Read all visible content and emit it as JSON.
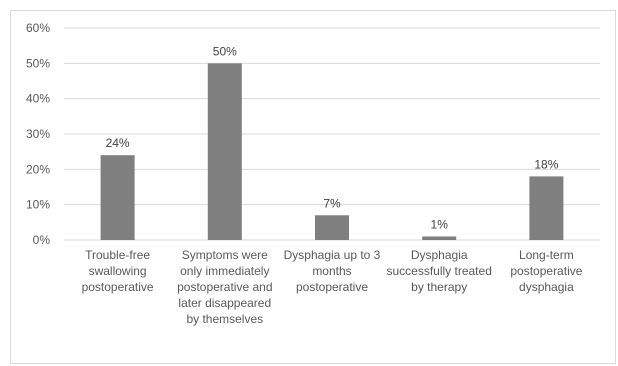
{
  "chart_data": {
    "type": "bar",
    "categories": [
      "Trouble-free swallowing postoperative",
      "Symptoms were only immediately postoperative and later disappeared by themselves",
      "Dysphagia up to 3 months postoperative",
      "Dysphagia successfully treated by therapy",
      "Long-term postoperative dysphagia"
    ],
    "values": [
      24,
      50,
      7,
      1,
      18
    ],
    "data_labels": [
      "24%",
      "50%",
      "7%",
      "1%",
      "18%"
    ],
    "y_ticks": [
      "0%",
      "10%",
      "20%",
      "30%",
      "40%",
      "50%",
      "60%"
    ],
    "ylim": [
      0,
      60
    ],
    "grid": true,
    "bar_color": "#7f7f7f",
    "grid_color": "#d9d9d9"
  }
}
